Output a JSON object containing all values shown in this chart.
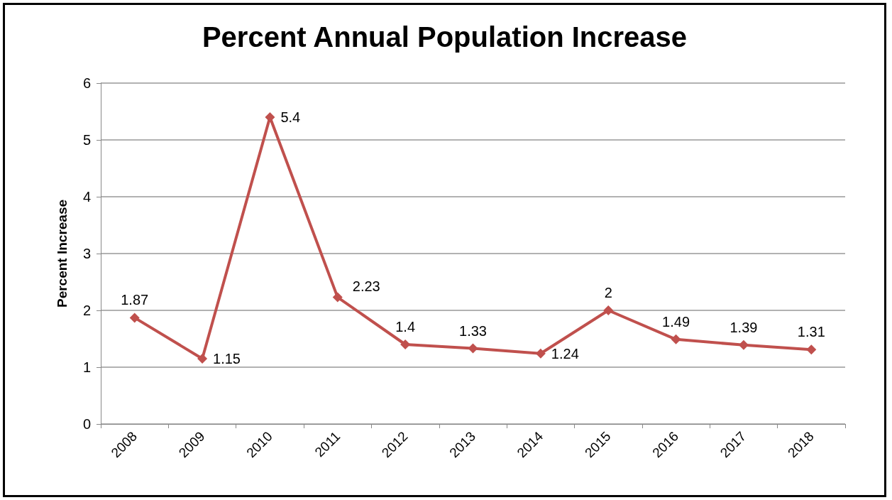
{
  "chart_data": {
    "type": "line",
    "title": "Percent Annual Population Increase",
    "ylabel": "Percent Increase",
    "categories": [
      "2008",
      "2009",
      "2010",
      "2011",
      "2012",
      "2013",
      "2014",
      "2015",
      "2016",
      "2017",
      "2018"
    ],
    "values": [
      1.87,
      1.15,
      5.4,
      2.23,
      1.4,
      1.33,
      1.24,
      2,
      1.49,
      1.39,
      1.31
    ],
    "color": "#c0504d",
    "ylim": [
      0,
      6
    ],
    "yticks": [
      0,
      1,
      2,
      3,
      4,
      5,
      6
    ],
    "grid": "y",
    "marker": "diamond",
    "line_style": "solid",
    "data_labels": true
  }
}
